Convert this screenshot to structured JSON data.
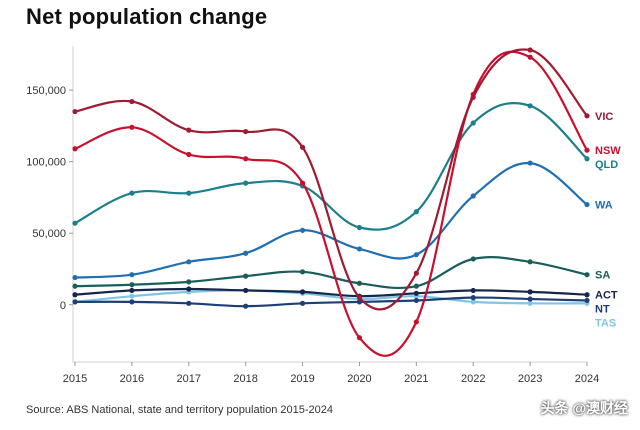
{
  "title": "Net population change",
  "source": "Source: ABS National, state and territory population 2015-2024",
  "watermark": "头条 @澳财经",
  "chart_data": {
    "type": "line",
    "title": "Net population change",
    "xlabel": "",
    "ylabel": "",
    "x": [
      2015,
      2016,
      2017,
      2018,
      2019,
      2020,
      2021,
      2022,
      2023,
      2024
    ],
    "xlim": [
      2015,
      2024
    ],
    "ylim": [
      -40000,
      185000
    ],
    "yticks": [
      0,
      50000,
      100000,
      150000
    ],
    "ytick_labels": [
      "0",
      "50,000",
      "100,000",
      "150,000"
    ],
    "grid": false,
    "legend": "series labels at right end of lines",
    "series": [
      {
        "name": "VIC",
        "color": "#9e1b32",
        "values": [
          135000,
          142000,
          122000,
          121000,
          110000,
          5000,
          22000,
          145000,
          178000,
          132000
        ]
      },
      {
        "name": "NSW",
        "color": "#c8102e",
        "values": [
          109000,
          124000,
          105000,
          102000,
          85000,
          -23000,
          -12000,
          147000,
          173000,
          108000
        ]
      },
      {
        "name": "QLD",
        "color": "#1b7f8c",
        "values": [
          57000,
          78000,
          78000,
          85000,
          83000,
          54000,
          65000,
          127000,
          139000,
          102000
        ]
      },
      {
        "name": "WA",
        "color": "#1f6fb2",
        "values": [
          19000,
          21000,
          30000,
          36000,
          52000,
          39000,
          35000,
          76000,
          99000,
          70000
        ]
      },
      {
        "name": "SA",
        "color": "#1a5e5c",
        "values": [
          13000,
          14000,
          16000,
          20000,
          23000,
          15000,
          13000,
          32000,
          30000,
          21000
        ]
      },
      {
        "name": "ACT",
        "color": "#16264a",
        "values": [
          7000,
          10000,
          11000,
          10000,
          9000,
          6000,
          8000,
          10000,
          9000,
          7000
        ]
      },
      {
        "name": "NT",
        "color": "#1d3f73",
        "values": [
          2000,
          2000,
          1000,
          -1000,
          1000,
          2000,
          3000,
          5000,
          4000,
          3000
        ]
      },
      {
        "name": "TAS",
        "color": "#7fc5e8",
        "values": [
          2000,
          6000,
          9000,
          10000,
          8000,
          4000,
          6000,
          2000,
          1000,
          1000
        ]
      }
    ]
  }
}
